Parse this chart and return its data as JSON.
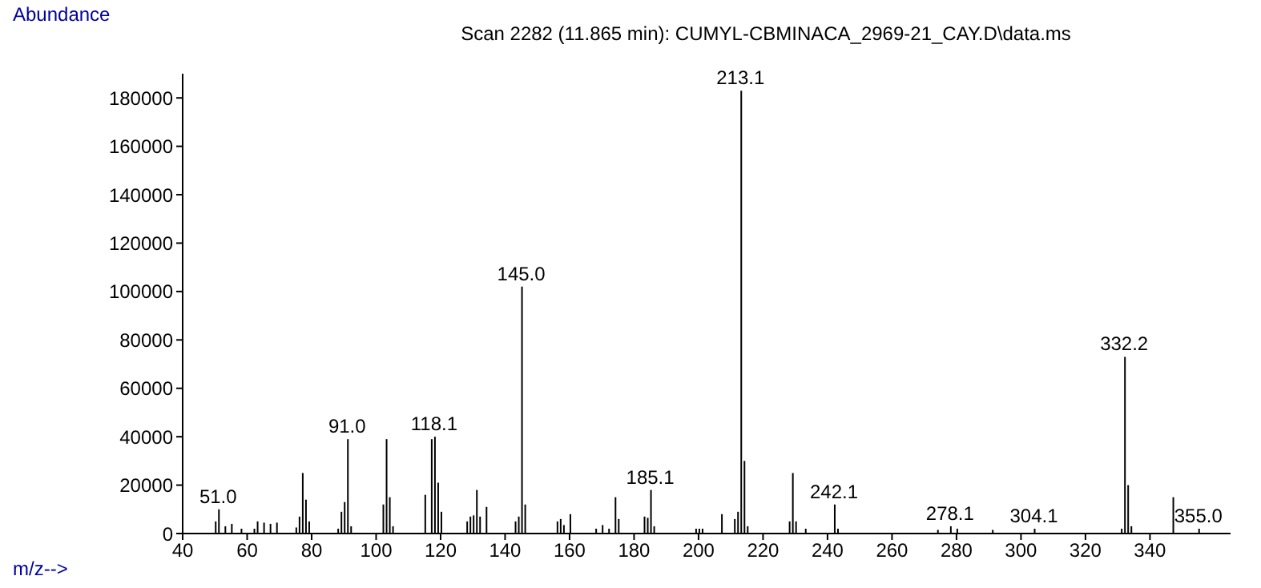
{
  "chart_data": {
    "type": "bar",
    "title": "Scan 2282 (11.865 min): CUMYL-CBMINACA_2969-21_CAY.D\\data.ms",
    "xlabel": "m/z-->",
    "ylabel": "Abundance",
    "x": [
      50,
      51,
      53,
      55,
      58,
      62,
      63,
      65,
      67,
      69,
      75,
      76,
      77,
      78,
      79,
      88,
      89,
      90,
      91,
      92,
      102,
      103,
      104,
      105,
      115,
      117,
      118,
      119,
      120,
      128,
      129,
      130,
      131,
      132,
      134,
      143,
      144,
      145,
      146,
      156,
      157,
      158,
      160,
      168,
      170,
      172,
      174,
      175,
      183,
      184,
      185,
      186,
      199,
      200,
      201,
      207,
      211,
      212,
      213,
      214,
      215,
      228,
      229,
      230,
      233,
      242,
      243,
      274,
      278,
      280,
      291,
      304,
      331,
      332,
      333,
      334,
      347,
      355
    ],
    "values": [
      5000,
      10000,
      3000,
      4000,
      2000,
      2000,
      5000,
      4500,
      4000,
      4500,
      2500,
      7000,
      25000,
      14000,
      5000,
      2000,
      9000,
      13000,
      39000,
      3000,
      12000,
      39000,
      15000,
      3000,
      16000,
      39000,
      40000,
      21000,
      9000,
      5000,
      7000,
      7500,
      18000,
      7000,
      11000,
      5000,
      7000,
      102000,
      12000,
      5000,
      6000,
      3500,
      8000,
      2000,
      3500,
      2000,
      15000,
      6000,
      7000,
      6500,
      18000,
      3000,
      2000,
      2000,
      2000,
      8000,
      6000,
      9000,
      183000,
      30000,
      3000,
      5000,
      25000,
      5000,
      2000,
      12000,
      2000,
      1500,
      3000,
      2000,
      1500,
      2000,
      2000,
      73000,
      20000,
      3000,
      15000,
      2000
    ],
    "annotations": [
      {
        "text": "51.0",
        "x": 51,
        "y": 10000
      },
      {
        "text": "91.0",
        "x": 91,
        "y": 39000
      },
      {
        "text": "118.1",
        "x": 118,
        "y": 40000
      },
      {
        "text": "145.0",
        "x": 145,
        "y": 102000
      },
      {
        "text": "185.1",
        "x": 185,
        "y": 18000
      },
      {
        "text": "213.1",
        "x": 213,
        "y": 183000
      },
      {
        "text": "242.1",
        "x": 242,
        "y": 12000
      },
      {
        "text": "278.1",
        "x": 278,
        "y": 3000
      },
      {
        "text": "304.1",
        "x": 304,
        "y": 2000
      },
      {
        "text": "332.2",
        "x": 332,
        "y": 73000
      },
      {
        "text": "355.0",
        "x": 355,
        "y": 2000
      }
    ],
    "color": "#000000",
    "xlim": [
      40,
      365
    ],
    "xticks": [
      40,
      60,
      80,
      100,
      120,
      140,
      160,
      180,
      200,
      220,
      240,
      260,
      280,
      300,
      320,
      340
    ],
    "ylim": [
      0,
      190000
    ],
    "yticks": [
      0,
      20000,
      40000,
      60000,
      80000,
      100000,
      120000,
      140000,
      160000,
      180000
    ]
  }
}
